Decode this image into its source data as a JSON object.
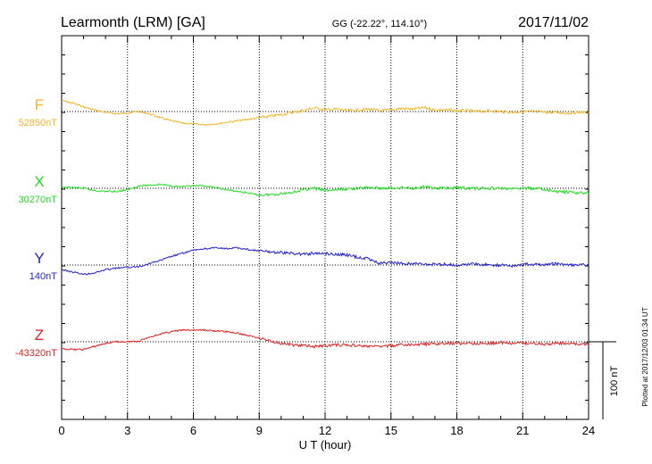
{
  "chart_data": {
    "type": "line",
    "title": "Learmonth (LRM)  [GA]",
    "coords": "GG (-22.22°, 114.10°)",
    "date": "2017/11/02",
    "xlabel": "U T (hour)",
    "xlim": [
      0,
      24
    ],
    "xticks": [
      0,
      3,
      6,
      9,
      12,
      15,
      18,
      21,
      24
    ],
    "grid": true,
    "scale_bar": "100 nT",
    "footer": "Plotted at 2017/12/03 01:34 UT",
    "series": [
      {
        "name": "F",
        "baseline_label": "52850nT",
        "color": "#f0b429",
        "baseline": 52850,
        "points": [
          [
            0,
            52864
          ],
          [
            0.5,
            52861
          ],
          [
            1,
            52856
          ],
          [
            1.5,
            52852
          ],
          [
            2,
            52849
          ],
          [
            2.5,
            52847
          ],
          [
            3,
            52848
          ],
          [
            3.5,
            52850
          ],
          [
            4,
            52847
          ],
          [
            4.5,
            52842
          ],
          [
            5,
            52838
          ],
          [
            5.5,
            52835
          ],
          [
            6,
            52834
          ],
          [
            6.5,
            52833
          ],
          [
            7,
            52834
          ],
          [
            7.5,
            52836
          ],
          [
            8,
            52838
          ],
          [
            8.5,
            52840
          ],
          [
            9,
            52842
          ],
          [
            9.5,
            52844
          ],
          [
            10,
            52846
          ],
          [
            10.5,
            52849
          ],
          [
            11,
            52851
          ],
          [
            11.5,
            52855
          ],
          [
            12,
            52852
          ],
          [
            12.5,
            52853
          ],
          [
            13,
            52851
          ],
          [
            13.5,
            52852
          ],
          [
            14,
            52853
          ],
          [
            14.5,
            52851
          ],
          [
            15,
            52852
          ],
          [
            15.5,
            52854
          ],
          [
            16,
            52853
          ],
          [
            16.5,
            52855
          ],
          [
            17,
            52852
          ],
          [
            17.5,
            52852
          ],
          [
            18,
            52851
          ],
          [
            18.5,
            52851
          ],
          [
            19,
            52850
          ],
          [
            19.5,
            52851
          ],
          [
            20,
            52850
          ],
          [
            20.5,
            52849
          ],
          [
            21,
            52850
          ],
          [
            21.5,
            52850
          ],
          [
            22,
            52849
          ],
          [
            22.5,
            52849
          ],
          [
            23,
            52848
          ],
          [
            23.5,
            52849
          ],
          [
            24,
            52849
          ]
        ]
      },
      {
        "name": "X",
        "baseline_label": "30270nT",
        "color": "#22dd22",
        "baseline": 30270,
        "points": [
          [
            0,
            30271
          ],
          [
            0.5,
            30271
          ],
          [
            1,
            30270
          ],
          [
            1.5,
            30267
          ],
          [
            2,
            30266
          ],
          [
            2.5,
            30266
          ],
          [
            3,
            30268
          ],
          [
            3.5,
            30273
          ],
          [
            4,
            30274
          ],
          [
            4.5,
            30275
          ],
          [
            5,
            30273
          ],
          [
            5.5,
            30272
          ],
          [
            6,
            30273
          ],
          [
            6.5,
            30273
          ],
          [
            7,
            30271
          ],
          [
            7.5,
            30268
          ],
          [
            8,
            30266
          ],
          [
            8.5,
            30264
          ],
          [
            9,
            30261
          ],
          [
            9.5,
            30262
          ],
          [
            10,
            30263
          ],
          [
            10.5,
            30265
          ],
          [
            11,
            30268
          ],
          [
            11.5,
            30270
          ],
          [
            12,
            30267
          ],
          [
            12.5,
            30268
          ],
          [
            13,
            30269
          ],
          [
            13.5,
            30270
          ],
          [
            14,
            30271
          ],
          [
            14.5,
            30270
          ],
          [
            15,
            30270
          ],
          [
            15.5,
            30271
          ],
          [
            16,
            30270
          ],
          [
            16.5,
            30272
          ],
          [
            17,
            30270
          ],
          [
            17.5,
            30270
          ],
          [
            18,
            30271
          ],
          [
            18.5,
            30270
          ],
          [
            19,
            30270
          ],
          [
            19.5,
            30270
          ],
          [
            20,
            30270
          ],
          [
            20.5,
            30269
          ],
          [
            21,
            30270
          ],
          [
            21.5,
            30270
          ],
          [
            22,
            30268
          ],
          [
            22.5,
            30266
          ],
          [
            23,
            30265
          ],
          [
            23.5,
            30264
          ],
          [
            24,
            30264
          ]
        ]
      },
      {
        "name": "Y",
        "baseline_label": "140nT",
        "color": "#2222cc",
        "baseline": 140,
        "points": [
          [
            0,
            134
          ],
          [
            0.5,
            131
          ],
          [
            1,
            128
          ],
          [
            1.5,
            130
          ],
          [
            2,
            134
          ],
          [
            2.5,
            136
          ],
          [
            3,
            137
          ],
          [
            3.5,
            138
          ],
          [
            4,
            142
          ],
          [
            4.5,
            146
          ],
          [
            5,
            151
          ],
          [
            5.5,
            155
          ],
          [
            6,
            159
          ],
          [
            6.5,
            161
          ],
          [
            7,
            162
          ],
          [
            7.5,
            161
          ],
          [
            8,
            162
          ],
          [
            8.5,
            160
          ],
          [
            9,
            158
          ],
          [
            9.5,
            157
          ],
          [
            10,
            156
          ],
          [
            10.5,
            155
          ],
          [
            11,
            154
          ],
          [
            11.5,
            155
          ],
          [
            12,
            155
          ],
          [
            12.5,
            154
          ],
          [
            13,
            153
          ],
          [
            13.5,
            150
          ],
          [
            14,
            148
          ],
          [
            14.5,
            142
          ],
          [
            15,
            143
          ],
          [
            15.5,
            142
          ],
          [
            16,
            142
          ],
          [
            16.5,
            141
          ],
          [
            17,
            141
          ],
          [
            17.5,
            141
          ],
          [
            18,
            140
          ],
          [
            18.5,
            141
          ],
          [
            19,
            141
          ],
          [
            19.5,
            140
          ],
          [
            20,
            140
          ],
          [
            20.5,
            139
          ],
          [
            21,
            141
          ],
          [
            21.5,
            141
          ],
          [
            22,
            140
          ],
          [
            22.5,
            142
          ],
          [
            23,
            140
          ],
          [
            23.5,
            140
          ],
          [
            24,
            140
          ]
        ]
      },
      {
        "name": "Z",
        "baseline_label": "-43320nT",
        "color": "#dd2222",
        "baseline": -43320,
        "points": [
          [
            0,
            -43329
          ],
          [
            0.5,
            -43330
          ],
          [
            1,
            -43330
          ],
          [
            1.5,
            -43326
          ],
          [
            2,
            -43322
          ],
          [
            2.5,
            -43320
          ],
          [
            3,
            -43320
          ],
          [
            3.5,
            -43319
          ],
          [
            4,
            -43314
          ],
          [
            4.5,
            -43310
          ],
          [
            5,
            -43307
          ],
          [
            5.5,
            -43305
          ],
          [
            6,
            -43305
          ],
          [
            6.5,
            -43305
          ],
          [
            7,
            -43306
          ],
          [
            7.5,
            -43307
          ],
          [
            8,
            -43309
          ],
          [
            8.5,
            -43312
          ],
          [
            9,
            -43315
          ],
          [
            9.5,
            -43319
          ],
          [
            10,
            -43322
          ],
          [
            10.5,
            -43324
          ],
          [
            11,
            -43325
          ],
          [
            11.5,
            -43326
          ],
          [
            12,
            -43325
          ],
          [
            12.5,
            -43324
          ],
          [
            13,
            -43324
          ],
          [
            13.5,
            -43325
          ],
          [
            14,
            -43326
          ],
          [
            14.5,
            -43326
          ],
          [
            15,
            -43325
          ],
          [
            15.5,
            -43324
          ],
          [
            16,
            -43324
          ],
          [
            16.5,
            -43323
          ],
          [
            17,
            -43323
          ],
          [
            17.5,
            -43322
          ],
          [
            18,
            -43322
          ],
          [
            18.5,
            -43322
          ],
          [
            19,
            -43322
          ],
          [
            19.5,
            -43322
          ],
          [
            20,
            -43321
          ],
          [
            20.5,
            -43322
          ],
          [
            21,
            -43322
          ],
          [
            21.5,
            -43322
          ],
          [
            22,
            -43323
          ],
          [
            22.5,
            -43322
          ],
          [
            23,
            -43322
          ],
          [
            23.5,
            -43323
          ],
          [
            24,
            -43323
          ]
        ]
      }
    ]
  }
}
